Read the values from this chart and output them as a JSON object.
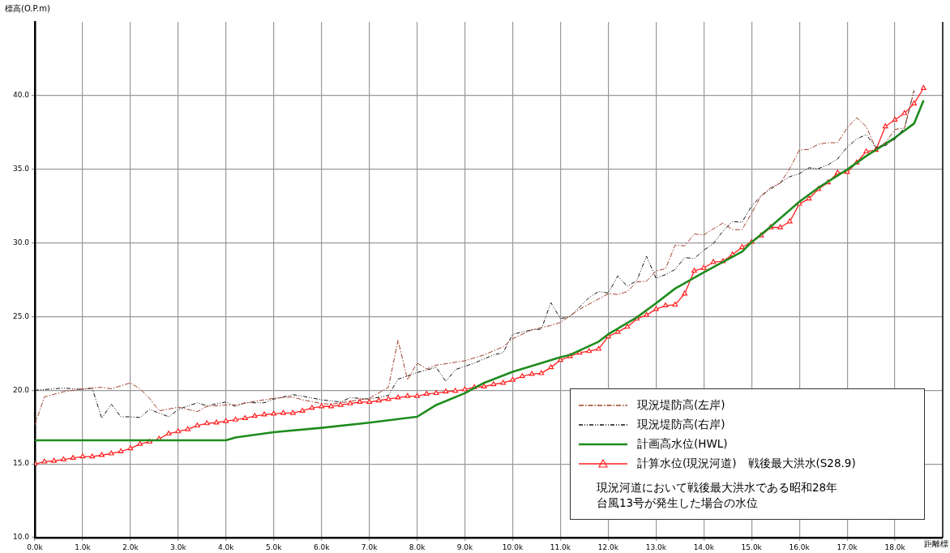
{
  "chart_data": {
    "type": "line",
    "ylabel": "標高(O.P.m)",
    "xlabel": "距離標",
    "xlim": [
      0,
      19
    ],
    "ylim": [
      10,
      45
    ],
    "xticks": [
      {
        "value": 0,
        "label": "0.0k"
      },
      {
        "value": 1,
        "label": "1.0k"
      },
      {
        "value": 2,
        "label": "2.0k"
      },
      {
        "value": 3,
        "label": "3.0k"
      },
      {
        "value": 4,
        "label": "4.0k"
      },
      {
        "value": 5,
        "label": "5.0k"
      },
      {
        "value": 6,
        "label": "6.0k"
      },
      {
        "value": 7,
        "label": "7.0k"
      },
      {
        "value": 8,
        "label": "8.0k"
      },
      {
        "value": 9,
        "label": "9.0k"
      },
      {
        "value": 10,
        "label": "10.0k"
      },
      {
        "value": 11,
        "label": "11.0k"
      },
      {
        "value": 12,
        "label": "12.0k"
      },
      {
        "value": 13,
        "label": "13.0k"
      },
      {
        "value": 14,
        "label": "14.0k"
      },
      {
        "value": 15,
        "label": "15.0k"
      },
      {
        "value": 16,
        "label": "16.0k"
      },
      {
        "value": 17,
        "label": "17.0k"
      },
      {
        "value": 18,
        "label": "18.0k"
      }
    ],
    "yticks": [
      {
        "value": 10,
        "label": "10.0"
      },
      {
        "value": 15,
        "label": "15.0"
      },
      {
        "value": 20,
        "label": "20.0"
      },
      {
        "value": 25,
        "label": "25.0"
      },
      {
        "value": 30,
        "label": "30.0"
      },
      {
        "value": 35,
        "label": "35.0"
      },
      {
        "value": 40,
        "label": "40.0"
      }
    ],
    "grid": true,
    "legend": "bottom right",
    "annotations": [
      "現況河道において戦後最大洪水である昭和28年台風13号が発生した場合の水位"
    ],
    "series": [
      {
        "name": "現況堤防高(左岸)",
        "color": "#a0402a",
        "line_style": "dashed",
        "marker": "none",
        "x": [
          0,
          0.2,
          0.6,
          1.0,
          1.4,
          1.6,
          2.0,
          2.2,
          2.4,
          2.6,
          3.0,
          3.4,
          3.6,
          4.0,
          4.2,
          4.6,
          5.0,
          5.4,
          5.6,
          6.0,
          6.2,
          6.4,
          7.0,
          7.4,
          7.6,
          7.8,
          8.0,
          8.2,
          8.4,
          8.8,
          9.0,
          9.4,
          9.8,
          10.0,
          10.4,
          10.8,
          11.0,
          11.4,
          12.0,
          12.2,
          12.4,
          12.6,
          12.8,
          13.0,
          13.2,
          13.4,
          13.6,
          13.8,
          14.0,
          14.4,
          14.6,
          14.8,
          15.0,
          15.2,
          15.4,
          15.6,
          15.8,
          16.0,
          16.2,
          16.4,
          16.6,
          16.8,
          17.0,
          17.2,
          17.4,
          17.6,
          17.8,
          18.0,
          18.2,
          18.4
        ],
        "values": [
          17.65,
          19.55,
          19.9,
          20.1,
          20.2,
          20.1,
          20.5,
          20.1,
          19.45,
          18.6,
          18.85,
          18.55,
          18.9,
          19.0,
          19.0,
          19.25,
          19.45,
          19.55,
          19.35,
          19.1,
          19.05,
          19.15,
          19.45,
          20.2,
          23.4,
          20.7,
          21.85,
          21.45,
          21.7,
          21.9,
          22.0,
          22.4,
          22.95,
          23.5,
          24.1,
          24.4,
          24.6,
          25.5,
          26.55,
          26.5,
          26.7,
          27.35,
          27.4,
          28.1,
          28.25,
          29.85,
          29.8,
          30.6,
          30.55,
          31.35,
          30.9,
          30.9,
          32.0,
          33.2,
          33.75,
          34.05,
          35.05,
          36.3,
          36.35,
          36.7,
          36.8,
          36.8,
          37.8,
          38.5,
          37.9,
          36.4,
          36.8,
          37.7,
          37.8,
          40.3
        ]
      },
      {
        "name": "現況堤防高(右岸)",
        "color": "#111111",
        "line_style": "dotted",
        "marker": "none",
        "x": [
          0,
          0.4,
          0.6,
          1.0,
          1.2,
          1.4,
          1.6,
          1.8,
          2.0,
          2.2,
          2.4,
          2.6,
          2.8,
          3.0,
          3.4,
          3.6,
          4.0,
          4.2,
          4.4,
          4.8,
          5.0,
          5.4,
          5.6,
          6.0,
          6.4,
          6.6,
          7.0,
          7.4,
          7.6,
          8.0,
          8.4,
          8.6,
          8.8,
          9.2,
          9.6,
          9.8,
          10.0,
          10.4,
          10.6,
          10.8,
          11.0,
          11.2,
          11.6,
          11.8,
          12.0,
          12.2,
          12.4,
          12.6,
          12.8,
          13.0,
          13.2,
          13.4,
          13.6,
          13.8,
          14.0,
          14.2,
          14.4,
          14.6,
          14.8,
          15.0,
          15.2,
          15.4,
          15.6,
          15.8,
          16.0,
          16.2,
          16.4,
          16.6,
          16.8,
          17.0,
          17.2,
          17.4,
          17.6,
          17.8,
          18.0,
          18.2,
          18.4
        ],
        "values": [
          20.0,
          20.1,
          20.15,
          20.05,
          20.15,
          18.1,
          19.05,
          18.2,
          18.2,
          18.15,
          18.7,
          18.45,
          18.2,
          18.7,
          19.15,
          18.95,
          19.2,
          18.9,
          19.15,
          19.15,
          19.4,
          19.7,
          19.6,
          19.35,
          19.2,
          19.5,
          19.4,
          19.65,
          20.75,
          21.2,
          21.55,
          20.6,
          21.4,
          21.85,
          22.4,
          22.55,
          23.8,
          24.1,
          24.15,
          25.95,
          24.85,
          25.0,
          26.3,
          26.7,
          26.6,
          27.75,
          27.05,
          27.45,
          29.1,
          27.6,
          27.85,
          28.2,
          29.0,
          28.95,
          29.5,
          29.95,
          30.8,
          31.45,
          31.4,
          32.5,
          33.2,
          33.65,
          34.1,
          34.5,
          34.7,
          35.1,
          35.05,
          35.3,
          35.7,
          36.5,
          37.05,
          37.35,
          36.5,
          36.6,
          37.05,
          37.8,
          40.35
        ]
      },
      {
        "name": "計画高水位(HWL)",
        "color": "#1e8c1e",
        "line_style": "solid",
        "marker": "none",
        "x": [
          0,
          4.0,
          4.2,
          5.0,
          6.0,
          7.0,
          8.0,
          8.4,
          9.0,
          9.4,
          10.0,
          10.6,
          11.0,
          11.2,
          11.8,
          12.0,
          12.6,
          13.0,
          13.4,
          14.0,
          14.4,
          14.8,
          15.0,
          15.4,
          16.0,
          16.4,
          17.0,
          17.4,
          18.0,
          18.4,
          18.6
        ],
        "values": [
          16.6,
          16.6,
          16.8,
          17.15,
          17.45,
          17.8,
          18.2,
          19.0,
          19.8,
          20.5,
          21.25,
          21.85,
          22.25,
          22.4,
          23.3,
          23.8,
          24.95,
          25.9,
          26.9,
          28.0,
          28.7,
          29.4,
          30.05,
          31.1,
          32.8,
          33.75,
          34.98,
          35.9,
          37.14,
          38.1,
          39.67
        ]
      },
      {
        "name": "計算水位(現況河道)　戦後最大洪水(S28.9)",
        "color": "#ff2020",
        "line_style": "solid",
        "marker": "triangle",
        "x": [
          0,
          0.2,
          0.4,
          0.6,
          0.8,
          1.0,
          1.2,
          1.4,
          1.6,
          1.8,
          2.0,
          2.2,
          2.4,
          2.6,
          2.8,
          3.0,
          3.2,
          3.4,
          3.6,
          3.8,
          4.0,
          4.2,
          4.4,
          4.6,
          4.8,
          5.0,
          5.2,
          5.4,
          5.6,
          5.8,
          6.0,
          6.2,
          6.4,
          6.6,
          6.8,
          7.0,
          7.2,
          7.4,
          7.6,
          7.8,
          8.0,
          8.2,
          8.4,
          8.6,
          8.8,
          9.0,
          9.2,
          9.4,
          9.6,
          9.8,
          10.0,
          10.2,
          10.4,
          10.6,
          10.8,
          11.0,
          11.2,
          11.4,
          11.6,
          11.8,
          12.0,
          12.2,
          12.4,
          12.6,
          12.8,
          13.0,
          13.2,
          13.4,
          13.6,
          13.8,
          14.0,
          14.2,
          14.4,
          14.6,
          14.8,
          15.0,
          15.2,
          15.4,
          15.6,
          15.8,
          16.0,
          16.2,
          16.4,
          16.6,
          16.8,
          17.0,
          17.2,
          17.4,
          17.6,
          17.8,
          18.0,
          18.2,
          18.4,
          18.6
        ],
        "values": [
          15.0,
          15.15,
          15.2,
          15.3,
          15.4,
          15.5,
          15.5,
          15.6,
          15.7,
          15.85,
          16.05,
          16.35,
          16.5,
          16.7,
          17.05,
          17.2,
          17.35,
          17.6,
          17.75,
          17.8,
          17.9,
          18.0,
          18.1,
          18.25,
          18.35,
          18.4,
          18.45,
          18.45,
          18.6,
          18.8,
          18.9,
          18.9,
          19.0,
          19.1,
          19.2,
          19.2,
          19.3,
          19.4,
          19.5,
          19.6,
          19.6,
          19.75,
          19.8,
          19.9,
          19.95,
          20.05,
          20.2,
          20.25,
          20.4,
          20.5,
          20.7,
          20.95,
          21.1,
          21.15,
          21.55,
          22.05,
          22.3,
          22.55,
          22.65,
          22.8,
          23.65,
          23.95,
          24.3,
          24.85,
          25.1,
          25.5,
          25.75,
          25.8,
          26.55,
          28.1,
          28.3,
          28.7,
          28.75,
          29.2,
          29.7,
          30.05,
          30.5,
          31.05,
          31.05,
          31.45,
          32.65,
          33.0,
          33.65,
          34.1,
          34.75,
          34.8,
          35.45,
          36.2,
          36.3,
          37.9,
          38.35,
          38.8,
          39.45,
          40.5
        ]
      }
    ]
  }
}
